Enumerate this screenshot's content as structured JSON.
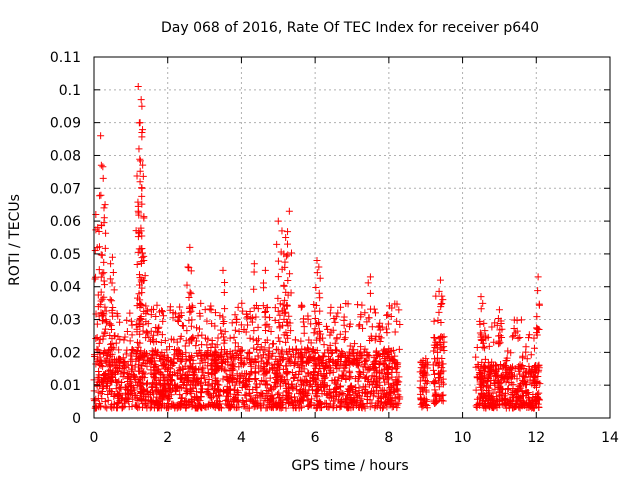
{
  "chart_data": {
    "type": "scatter",
    "title": "Day 068 of 2016, Rate Of TEC Index for receiver p640",
    "xlabel": "GPS time / hours",
    "ylabel": "ROTI / TECUs",
    "xlim": [
      0,
      14
    ],
    "ylim": [
      0,
      0.11
    ],
    "xticks": [
      0,
      2,
      4,
      6,
      8,
      10,
      12,
      14
    ],
    "xtick_labels": [
      "0",
      "2",
      "4",
      "6",
      "8",
      "10",
      "12",
      "14"
    ],
    "yticks": [
      0,
      0.01,
      0.02,
      0.03,
      0.04,
      0.05,
      0.06,
      0.07,
      0.08,
      0.09,
      0.1,
      0.11
    ],
    "ytick_labels": [
      "0",
      "0.01",
      "0.02",
      "0.03",
      "0.04",
      "0.05",
      "0.06",
      "0.07",
      "0.08",
      "0.09",
      "0.1",
      "0.11"
    ],
    "grid": true,
    "marker": "+",
    "series": [
      {
        "name": "ROTI",
        "color": "#ff0000",
        "envelope": [
          {
            "x_start": 0.0,
            "x_end": 8.3,
            "y_min": 0.003,
            "typical": 0.015,
            "upper": 0.035
          },
          {
            "x_start": 8.85,
            "x_end": 9.05,
            "y_min": 0.003,
            "typical": 0.012,
            "upper": 0.02
          },
          {
            "x_start": 9.2,
            "x_end": 9.5,
            "y_min": 0.004,
            "typical": 0.018,
            "upper": 0.038
          },
          {
            "x_start": 10.35,
            "x_end": 12.1,
            "y_min": 0.003,
            "typical": 0.012,
            "upper": 0.03
          }
        ],
        "peaks": [
          {
            "x": 0.05,
            "y": 0.062
          },
          {
            "x": 0.1,
            "y": 0.058
          },
          {
            "x": 0.18,
            "y": 0.086
          },
          {
            "x": 0.2,
            "y": 0.077
          },
          {
            "x": 0.25,
            "y": 0.073
          },
          {
            "x": 0.3,
            "y": 0.065
          },
          {
            "x": 0.28,
            "y": 0.061
          },
          {
            "x": 0.5,
            "y": 0.049
          },
          {
            "x": 0.45,
            "y": 0.047
          },
          {
            "x": 1.2,
            "y": 0.101
          },
          {
            "x": 1.28,
            "y": 0.097
          },
          {
            "x": 1.3,
            "y": 0.095
          },
          {
            "x": 1.25,
            "y": 0.09
          },
          {
            "x": 1.3,
            "y": 0.087
          },
          {
            "x": 1.22,
            "y": 0.082
          },
          {
            "x": 1.25,
            "y": 0.072
          },
          {
            "x": 1.3,
            "y": 0.07
          },
          {
            "x": 1.2,
            "y": 0.063
          },
          {
            "x": 1.28,
            "y": 0.057
          },
          {
            "x": 1.35,
            "y": 0.048
          },
          {
            "x": 2.6,
            "y": 0.052
          },
          {
            "x": 2.55,
            "y": 0.046
          },
          {
            "x": 3.5,
            "y": 0.045
          },
          {
            "x": 4.35,
            "y": 0.047
          },
          {
            "x": 4.65,
            "y": 0.045
          },
          {
            "x": 5.0,
            "y": 0.06
          },
          {
            "x": 5.1,
            "y": 0.057
          },
          {
            "x": 5.3,
            "y": 0.063
          },
          {
            "x": 5.2,
            "y": 0.055
          },
          {
            "x": 5.25,
            "y": 0.053
          },
          {
            "x": 5.15,
            "y": 0.05
          },
          {
            "x": 6.05,
            "y": 0.048
          },
          {
            "x": 6.1,
            "y": 0.046
          },
          {
            "x": 7.5,
            "y": 0.043
          },
          {
            "x": 9.4,
            "y": 0.042
          },
          {
            "x": 12.05,
            "y": 0.043
          },
          {
            "x": 10.5,
            "y": 0.037
          },
          {
            "x": 11.0,
            "y": 0.033
          }
        ]
      }
    ]
  }
}
